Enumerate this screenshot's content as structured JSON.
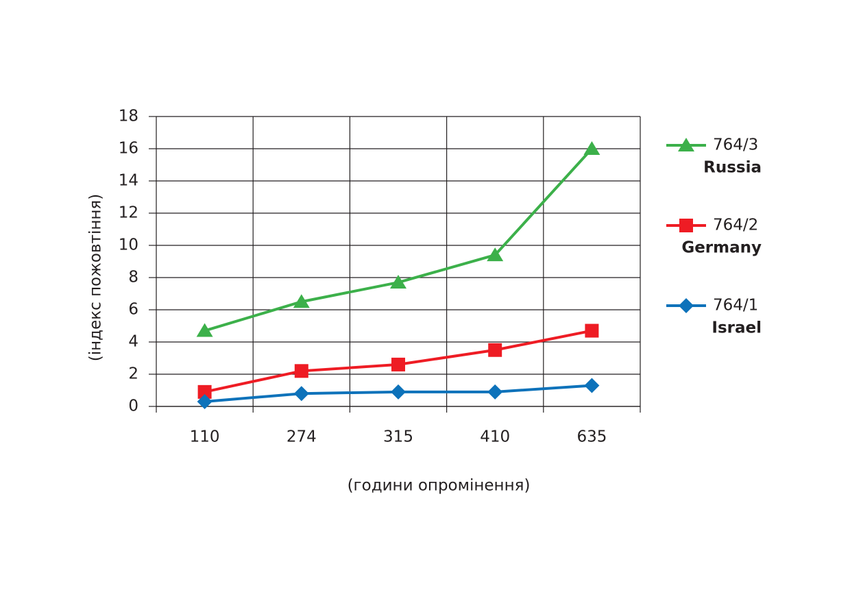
{
  "chart_data": {
    "type": "line",
    "x_label": "(години опромінення)",
    "y_label": "(індекс пожовтіння)",
    "categories": [
      "110",
      "274",
      "315",
      "410",
      "635"
    ],
    "series": [
      {
        "name": "764/3",
        "country": "Russia",
        "color": "#3cb04a",
        "marker": "triangle",
        "values": [
          4.7,
          6.5,
          7.7,
          9.4,
          16.0
        ]
      },
      {
        "name": "764/2",
        "country": "Germany",
        "color": "#ee1c24",
        "marker": "square",
        "values": [
          0.9,
          2.2,
          2.6,
          3.5,
          4.7
        ]
      },
      {
        "name": "764/1",
        "country": "Israel",
        "color": "#0d72ba",
        "marker": "diamond",
        "values": [
          0.3,
          0.8,
          0.9,
          0.9,
          1.3
        ]
      }
    ],
    "ylim": [
      0,
      18
    ],
    "yticks": [
      0,
      2,
      4,
      6,
      8,
      10,
      12,
      14,
      16,
      18
    ],
    "grid": true,
    "legend": "right"
  }
}
